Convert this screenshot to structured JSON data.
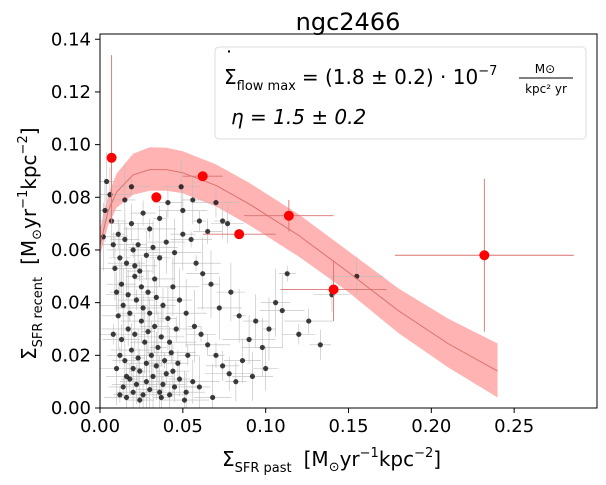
{
  "chart_data": {
    "type": "scatter",
    "title": "ngc2466",
    "xlabel": "Σ",
    "xlabel_sub": "SFR past",
    "xlabel_unit_a": "[M",
    "xlabel_unit_sun": "⊙",
    "xlabel_unit_b": "yr",
    "xlabel_unit_c": "kpc",
    "xlabel_unit_d": "]",
    "ylabel": "Σ",
    "ylabel_sub": "SFR recent",
    "ylabel_unit_a": "[M",
    "ylabel_unit_sun": "⊙",
    "ylabel_unit_b": "yr",
    "ylabel_unit_c": "kpc",
    "ylabel_unit_d": "]",
    "exp_neg1": "−1",
    "exp_neg2": "−2",
    "xlim": [
      0,
      0.3
    ],
    "ylim": [
      0,
      0.142
    ],
    "xticks": [
      0.0,
      0.05,
      0.1,
      0.15,
      0.2,
      0.25
    ],
    "xtick_labels": [
      "0.00",
      "0.05",
      "0.10",
      "0.15",
      "0.20",
      "0.25"
    ],
    "yticks": [
      0.0,
      0.02,
      0.04,
      0.06,
      0.08,
      0.1,
      0.12,
      0.14
    ],
    "ytick_labels": [
      "0.00",
      "0.02",
      "0.04",
      "0.06",
      "0.08",
      "0.10",
      "0.12",
      "0.14"
    ],
    "legend": {
      "placement": "top-right",
      "line1_sigma": "Σ",
      "line1_dot": "˙",
      "line1_sub": "flow max",
      "line1_text": "= (1.8 ± 0.2) · 10",
      "line1_exp": "−7",
      "line1_frac_num": "M⊙",
      "line1_frac_den": "kpc² yr",
      "line2": "η = 1.5 ± 0.2"
    },
    "model_curve": {
      "name": "fit",
      "color": "#d9726f",
      "band_color": "#ffb3b3",
      "x": [
        0.0,
        0.005,
        0.01,
        0.02,
        0.03,
        0.04,
        0.05,
        0.07,
        0.09,
        0.12,
        0.15,
        0.18,
        0.21,
        0.24
      ],
      "y": [
        0.062,
        0.075,
        0.082,
        0.0885,
        0.0905,
        0.0905,
        0.0893,
        0.0845,
        0.0775,
        0.0655,
        0.0515,
        0.037,
        0.0245,
        0.014
      ],
      "upper": [
        0.068,
        0.081,
        0.089,
        0.0965,
        0.099,
        0.0988,
        0.0975,
        0.0925,
        0.0855,
        0.0735,
        0.0595,
        0.0455,
        0.034,
        0.0245
      ],
      "lower": [
        0.058,
        0.0695,
        0.076,
        0.081,
        0.0825,
        0.0825,
        0.0815,
        0.0765,
        0.0695,
        0.0575,
        0.044,
        0.0285,
        0.0155,
        0.004
      ]
    },
    "binned_series": {
      "name": "binned",
      "color": "#ff0000",
      "errorbar_color": "#d9726f",
      "points": [
        {
          "x": 0.007,
          "y": 0.095,
          "xerr": 0.0,
          "yerr_lo": 0.025,
          "yerr_hi": 0.039
        },
        {
          "x": 0.034,
          "y": 0.08,
          "xerr": 0.0,
          "yerr_lo": 0.0,
          "yerr_hi": 0.0
        },
        {
          "x": 0.062,
          "y": 0.088,
          "xerr": 0.012,
          "yerr_lo": 0.0,
          "yerr_hi": 0.0
        },
        {
          "x": 0.084,
          "y": 0.066,
          "xerr": 0.022,
          "yerr_lo": 0.0,
          "yerr_hi": 0.0
        },
        {
          "x": 0.114,
          "y": 0.073,
          "xerr": 0.027,
          "yerr_lo": 0.006,
          "yerr_hi": 0.006
        },
        {
          "x": 0.141,
          "y": 0.045,
          "xerr": 0.032,
          "yerr_lo": 0.012,
          "yerr_hi": 0.011
        },
        {
          "x": 0.232,
          "y": 0.058,
          "xerr": 0.054,
          "yerr_lo": 0.029,
          "yerr_hi": 0.029
        }
      ]
    },
    "individual_series": {
      "name": "regions",
      "color": "#000000",
      "errorbar_color": "#bbbbbb",
      "points": [
        {
          "x": 0.012,
          "y": 0.005
        },
        {
          "x": 0.014,
          "y": 0.008
        },
        {
          "x": 0.016,
          "y": 0.004
        },
        {
          "x": 0.018,
          "y": 0.011
        },
        {
          "x": 0.02,
          "y": 0.006
        },
        {
          "x": 0.022,
          "y": 0.009
        },
        {
          "x": 0.024,
          "y": 0.014
        },
        {
          "x": 0.026,
          "y": 0.005
        },
        {
          "x": 0.028,
          "y": 0.01
        },
        {
          "x": 0.03,
          "y": 0.007
        },
        {
          "x": 0.032,
          "y": 0.012
        },
        {
          "x": 0.034,
          "y": 0.016
        },
        {
          "x": 0.036,
          "y": 0.006
        },
        {
          "x": 0.038,
          "y": 0.009
        },
        {
          "x": 0.04,
          "y": 0.013
        },
        {
          "x": 0.042,
          "y": 0.005
        },
        {
          "x": 0.045,
          "y": 0.008
        },
        {
          "x": 0.048,
          "y": 0.011
        },
        {
          "x": 0.052,
          "y": 0.006
        },
        {
          "x": 0.056,
          "y": 0.01
        },
        {
          "x": 0.015,
          "y": 0.018
        },
        {
          "x": 0.019,
          "y": 0.022
        },
        {
          "x": 0.023,
          "y": 0.019
        },
        {
          "x": 0.027,
          "y": 0.025
        },
        {
          "x": 0.031,
          "y": 0.02
        },
        {
          "x": 0.035,
          "y": 0.023
        },
        {
          "x": 0.039,
          "y": 0.018
        },
        {
          "x": 0.043,
          "y": 0.021
        },
        {
          "x": 0.047,
          "y": 0.017
        },
        {
          "x": 0.013,
          "y": 0.026
        },
        {
          "x": 0.017,
          "y": 0.03
        },
        {
          "x": 0.021,
          "y": 0.028
        },
        {
          "x": 0.025,
          "y": 0.033
        },
        {
          "x": 0.029,
          "y": 0.029
        },
        {
          "x": 0.033,
          "y": 0.031
        },
        {
          "x": 0.037,
          "y": 0.027
        },
        {
          "x": 0.041,
          "y": 0.034
        },
        {
          "x": 0.011,
          "y": 0.035
        },
        {
          "x": 0.014,
          "y": 0.039
        },
        {
          "x": 0.018,
          "y": 0.036
        },
        {
          "x": 0.022,
          "y": 0.041
        },
        {
          "x": 0.026,
          "y": 0.038
        },
        {
          "x": 0.03,
          "y": 0.036
        },
        {
          "x": 0.034,
          "y": 0.042
        },
        {
          "x": 0.01,
          "y": 0.044
        },
        {
          "x": 0.013,
          "y": 0.047
        },
        {
          "x": 0.017,
          "y": 0.043
        },
        {
          "x": 0.021,
          "y": 0.05
        },
        {
          "x": 0.025,
          "y": 0.046
        },
        {
          "x": 0.009,
          "y": 0.053
        },
        {
          "x": 0.012,
          "y": 0.057
        },
        {
          "x": 0.016,
          "y": 0.055
        },
        {
          "x": 0.02,
          "y": 0.06
        },
        {
          "x": 0.024,
          "y": 0.052
        },
        {
          "x": 0.008,
          "y": 0.062
        },
        {
          "x": 0.011,
          "y": 0.066
        },
        {
          "x": 0.015,
          "y": 0.064
        },
        {
          "x": 0.019,
          "y": 0.07
        },
        {
          "x": 0.023,
          "y": 0.062
        },
        {
          "x": 0.028,
          "y": 0.058
        },
        {
          "x": 0.032,
          "y": 0.061
        },
        {
          "x": 0.036,
          "y": 0.057
        },
        {
          "x": 0.04,
          "y": 0.063
        },
        {
          "x": 0.045,
          "y": 0.059
        },
        {
          "x": 0.05,
          "y": 0.066
        },
        {
          "x": 0.055,
          "y": 0.064
        },
        {
          "x": 0.06,
          "y": 0.071
        },
        {
          "x": 0.065,
          "y": 0.067
        },
        {
          "x": 0.07,
          "y": 0.078
        },
        {
          "x": 0.074,
          "y": 0.071
        },
        {
          "x": 0.077,
          "y": 0.07
        },
        {
          "x": 0.05,
          "y": 0.075
        },
        {
          "x": 0.056,
          "y": 0.079
        },
        {
          "x": 0.049,
          "y": 0.084
        },
        {
          "x": 0.044,
          "y": 0.046
        },
        {
          "x": 0.048,
          "y": 0.041
        },
        {
          "x": 0.052,
          "y": 0.036
        },
        {
          "x": 0.057,
          "y": 0.031
        },
        {
          "x": 0.061,
          "y": 0.028
        },
        {
          "x": 0.065,
          "y": 0.024
        },
        {
          "x": 0.07,
          "y": 0.02
        },
        {
          "x": 0.074,
          "y": 0.016
        },
        {
          "x": 0.078,
          "y": 0.013
        },
        {
          "x": 0.082,
          "y": 0.01
        },
        {
          "x": 0.086,
          "y": 0.018
        },
        {
          "x": 0.09,
          "y": 0.026
        },
        {
          "x": 0.094,
          "y": 0.033
        },
        {
          "x": 0.098,
          "y": 0.023
        },
        {
          "x": 0.102,
          "y": 0.03
        },
        {
          "x": 0.106,
          "y": 0.04
        },
        {
          "x": 0.11,
          "y": 0.037
        },
        {
          "x": 0.113,
          "y": 0.051
        },
        {
          "x": 0.12,
          "y": 0.028
        },
        {
          "x": 0.126,
          "y": 0.033
        },
        {
          "x": 0.133,
          "y": 0.024
        },
        {
          "x": 0.14,
          "y": 0.043
        },
        {
          "x": 0.155,
          "y": 0.05
        },
        {
          "x": 0.1,
          "y": 0.015
        },
        {
          "x": 0.092,
          "y": 0.012
        },
        {
          "x": 0.084,
          "y": 0.035
        },
        {
          "x": 0.079,
          "y": 0.044
        },
        {
          "x": 0.072,
          "y": 0.038
        },
        {
          "x": 0.067,
          "y": 0.047
        },
        {
          "x": 0.062,
          "y": 0.051
        },
        {
          "x": 0.058,
          "y": 0.055
        },
        {
          "x": 0.053,
          "y": 0.02
        },
        {
          "x": 0.046,
          "y": 0.03
        },
        {
          "x": 0.042,
          "y": 0.025
        },
        {
          "x": 0.038,
          "y": 0.039
        },
        {
          "x": 0.033,
          "y": 0.049
        },
        {
          "x": 0.029,
          "y": 0.044
        },
        {
          "x": 0.007,
          "y": 0.071
        },
        {
          "x": 0.006,
          "y": 0.081
        },
        {
          "x": 0.004,
          "y": 0.086
        },
        {
          "x": 0.003,
          "y": 0.075
        },
        {
          "x": 0.002,
          "y": 0.065
        },
        {
          "x": 0.015,
          "y": 0.079
        },
        {
          "x": 0.019,
          "y": 0.084
        },
        {
          "x": 0.03,
          "y": 0.068
        },
        {
          "x": 0.026,
          "y": 0.074
        },
        {
          "x": 0.016,
          "y": 0.012
        },
        {
          "x": 0.02,
          "y": 0.015
        },
        {
          "x": 0.024,
          "y": 0.003
        },
        {
          "x": 0.028,
          "y": 0.017
        },
        {
          "x": 0.037,
          "y": 0.004
        },
        {
          "x": 0.044,
          "y": 0.014
        },
        {
          "x": 0.051,
          "y": 0.003
        },
        {
          "x": 0.06,
          "y": 0.008
        },
        {
          "x": 0.068,
          "y": 0.004
        },
        {
          "x": 0.01,
          "y": 0.015
        },
        {
          "x": 0.012,
          "y": 0.02
        },
        {
          "x": 0.008,
          "y": 0.028
        },
        {
          "x": 0.036,
          "y": 0.072
        },
        {
          "x": 0.041,
          "y": 0.078
        },
        {
          "x": 0.021,
          "y": 0.054
        }
      ]
    }
  }
}
